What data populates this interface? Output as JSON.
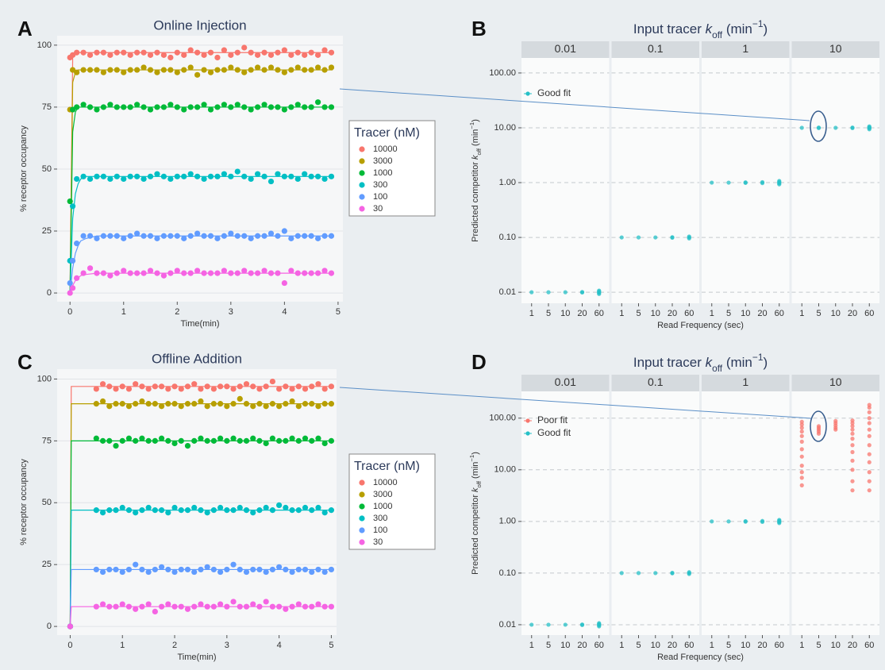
{
  "chart_data": [
    {
      "type": "scatter",
      "panel": "A",
      "title": "Online Injection",
      "xlabel": "Time(min)",
      "ylabel": "% receptor occupancy",
      "xlim": [
        -0.24,
        5.09
      ],
      "ylim": [
        -3.5,
        103.8
      ],
      "xticks": [
        0,
        1,
        2,
        3,
        4,
        5
      ],
      "yticks": [
        0,
        25,
        50,
        75,
        100
      ],
      "grid": true,
      "legend": "right",
      "legend_title": "Tracer (nM)",
      "x": [
        0,
        0.05,
        0.125,
        0.25,
        0.375,
        0.5,
        0.625,
        0.75,
        0.875,
        1,
        1.125,
        1.25,
        1.375,
        1.5,
        1.625,
        1.75,
        1.875,
        2,
        2.125,
        2.25,
        2.375,
        2.5,
        2.625,
        2.75,
        2.875,
        3,
        3.125,
        3.25,
        3.375,
        3.5,
        3.625,
        3.75,
        3.875,
        4,
        4.125,
        4.25,
        4.375,
        4.5,
        4.625,
        4.75,
        4.875
      ],
      "fit_x": [
        0,
        0.05,
        0.1,
        0.15,
        0.2,
        0.3,
        0.5,
        1,
        4.9
      ],
      "series": [
        {
          "name": "10000",
          "color": "#f8766d",
          "values": [
            95,
            96,
            97,
            97,
            96,
            97,
            97,
            96,
            97,
            97,
            96,
            97,
            97,
            96,
            97,
            96,
            95,
            97,
            96,
            98,
            97,
            96,
            97,
            95,
            98,
            96,
            97,
            99,
            97,
            96,
            97,
            96,
            97,
            98,
            96,
            97,
            96,
            97,
            96,
            98,
            97
          ],
          "fit_values": [
            0,
            95,
            97,
            97,
            97,
            97,
            97,
            97,
            97
          ]
        },
        {
          "name": "3000",
          "color": "#b79f00",
          "values": [
            74,
            90,
            89,
            90,
            90,
            90,
            89,
            90,
            90,
            89,
            90,
            90,
            91,
            90,
            89,
            90,
            90,
            89,
            90,
            91,
            88,
            90,
            89,
            90,
            90,
            91,
            90,
            89,
            90,
            91,
            90,
            91,
            90,
            89,
            90,
            91,
            90,
            90,
            91,
            90,
            91
          ],
          "fit_values": [
            0,
            85,
            89,
            90,
            90,
            90,
            90,
            90,
            90
          ]
        },
        {
          "name": "1000",
          "color": "#00ba38",
          "values": [
            37,
            74,
            75,
            76,
            75,
            74,
            75,
            76,
            75,
            75,
            75,
            76,
            75,
            74,
            75,
            75,
            76,
            75,
            74,
            75,
            75,
            76,
            74,
            75,
            76,
            75,
            76,
            75,
            74,
            75,
            76,
            75,
            75,
            74,
            75,
            76,
            75,
            75,
            77,
            75,
            75
          ],
          "fit_values": [
            0,
            65,
            73,
            75,
            75,
            75,
            75,
            75,
            75
          ]
        },
        {
          "name": "300",
          "color": "#00bfc4",
          "values": [
            13,
            35,
            46,
            47,
            46,
            47,
            47,
            46,
            47,
            46,
            47,
            47,
            46,
            47,
            48,
            47,
            46,
            47,
            47,
            48,
            47,
            46,
            47,
            47,
            48,
            47,
            49,
            47,
            46,
            48,
            47,
            45,
            48,
            47,
            47,
            46,
            48,
            47,
            47,
            46,
            47
          ],
          "fit_values": [
            0,
            30,
            40,
            44,
            46,
            47,
            47,
            47,
            47
          ]
        },
        {
          "name": "100",
          "color": "#619cff",
          "values": [
            4,
            13,
            20,
            23,
            23,
            22,
            23,
            23,
            23,
            22,
            23,
            24,
            23,
            23,
            22,
            23,
            23,
            23,
            22,
            23,
            24,
            23,
            23,
            22,
            23,
            24,
            23,
            23,
            22,
            23,
            23,
            24,
            23,
            25,
            22,
            23,
            23,
            23,
            22,
            23,
            23
          ],
          "fit_values": [
            0,
            10,
            16,
            19,
            21,
            22,
            23,
            23,
            23
          ]
        },
        {
          "name": "30",
          "color": "#f564e3",
          "values": [
            0,
            2,
            6,
            8,
            10,
            8,
            8,
            7,
            8,
            9,
            8,
            8,
            8,
            9,
            8,
            7,
            8,
            9,
            8,
            8,
            9,
            8,
            8,
            8,
            9,
            8,
            8,
            9,
            8,
            8,
            9,
            8,
            8,
            4,
            9,
            8,
            8,
            8,
            8,
            9,
            8
          ],
          "fit_values": [
            0,
            3,
            5,
            6,
            7,
            7.5,
            8,
            8,
            8
          ]
        }
      ]
    },
    {
      "type": "strip",
      "panel": "B",
      "title_parts": [
        "Input tracer ",
        "k",
        "off",
        " (min",
        "−1",
        ")"
      ],
      "xlabel": "Read Frequency (sec)",
      "ylabel_parts": [
        "Predicted competitor ",
        "k",
        "off",
        " (min",
        "−1",
        ")"
      ],
      "log_y": true,
      "grid": true,
      "legend": "top-left",
      "ylim": [
        0.0063,
        188
      ],
      "yticks": [
        0.01,
        {
          "value": 0.1,
          "label": "0.10"
        },
        {
          "value": 1,
          "label": "1.00"
        },
        {
          "value": 10,
          "label": "10.00"
        },
        {
          "value": 100,
          "label": "100.00"
        }
      ],
      "facets": [
        "0.01",
        "0.1",
        "1",
        "10"
      ],
      "categories": [
        "1",
        "5",
        "10",
        "20",
        "60"
      ],
      "series": [
        {
          "name": "Good fit",
          "color": "#26c0c7",
          "values": [
            [
              [
                0.01
              ],
              [
                0.01
              ],
              [
                0.01
              ],
              [
                0.0099,
                0.0101
              ],
              [
                0.0093,
                0.0097,
                0.01,
                0.0103,
                0.0107
              ]
            ],
            [
              [
                0.1
              ],
              [
                0.1
              ],
              [
                0.1
              ],
              [
                0.099,
                0.101
              ],
              [
                0.096,
                0.1,
                0.104
              ]
            ],
            [
              [
                1
              ],
              [
                1
              ],
              [
                0.99,
                1.01
              ],
              [
                0.98,
                1.02
              ],
              [
                0.93,
                0.97,
                1,
                1.03,
                1.07
              ]
            ],
            [
              [
                10
              ],
              [
                9.9,
                10.1
              ],
              [
                10
              ],
              [
                9.9,
                10.1
              ],
              [
                9.4,
                9.8,
                10,
                10.2,
                10.6
              ]
            ]
          ]
        }
      ]
    },
    {
      "type": "scatter",
      "panel": "C",
      "title": "Offline Addition",
      "xlabel": "Time(min)",
      "ylabel": "% receptor occupancy",
      "xlim": [
        -0.25,
        5.1
      ],
      "ylim": [
        -3.5,
        104
      ],
      "xticks": [
        0,
        1,
        2,
        3,
        4,
        5
      ],
      "yticks": [
        0,
        25,
        50,
        75,
        100
      ],
      "grid": true,
      "legend": "right",
      "legend_title": "Tracer (nM)",
      "x": [
        0,
        0.5,
        0.625,
        0.75,
        0.875,
        1,
        1.125,
        1.25,
        1.375,
        1.5,
        1.625,
        1.75,
        1.875,
        2,
        2.125,
        2.25,
        2.375,
        2.5,
        2.625,
        2.75,
        2.875,
        3,
        3.125,
        3.25,
        3.375,
        3.5,
        3.625,
        3.75,
        3.875,
        4,
        4.125,
        4.25,
        4.375,
        4.5,
        4.625,
        4.75,
        4.875,
        5
      ],
      "fit_x": [
        0,
        0.02,
        5
      ],
      "series": [
        {
          "name": "10000",
          "color": "#f8766d",
          "values": [
            0,
            96,
            98,
            97,
            96,
            97,
            96,
            98,
            97,
            96,
            97,
            97,
            96,
            97,
            96,
            97,
            98,
            96,
            97,
            96,
            97,
            97,
            96,
            97,
            98,
            97,
            96,
            97,
            99,
            96,
            97,
            96,
            97,
            96,
            97,
            98,
            96,
            97
          ],
          "fit_values": [
            0,
            97,
            97
          ]
        },
        {
          "name": "3000",
          "color": "#b79f00",
          "values": [
            0,
            90,
            91,
            89,
            90,
            90,
            89,
            90,
            91,
            90,
            90,
            89,
            90,
            90,
            89,
            90,
            90,
            91,
            89,
            90,
            90,
            89,
            90,
            92,
            90,
            89,
            90,
            89,
            90,
            89,
            90,
            91,
            89,
            90,
            90,
            89,
            90,
            90
          ],
          "fit_values": [
            0,
            90,
            90
          ]
        },
        {
          "name": "1000",
          "color": "#00ba38",
          "values": [
            0,
            76,
            75,
            75,
            73,
            75,
            76,
            75,
            76,
            75,
            75,
            76,
            75,
            74,
            75,
            73,
            75,
            76,
            75,
            75,
            76,
            75,
            76,
            75,
            75,
            76,
            75,
            74,
            76,
            75,
            75,
            76,
            75,
            76,
            75,
            76,
            74,
            75
          ],
          "fit_values": [
            0,
            75,
            75
          ]
        },
        {
          "name": "300",
          "color": "#00bfc4",
          "values": [
            0,
            47,
            46,
            47,
            47,
            48,
            47,
            46,
            47,
            48,
            47,
            47,
            46,
            48,
            47,
            47,
            48,
            47,
            46,
            47,
            48,
            47,
            47,
            48,
            47,
            46,
            47,
            48,
            47,
            49,
            48,
            47,
            47,
            48,
            47,
            48,
            46,
            47
          ],
          "fit_values": [
            0,
            47,
            47
          ]
        },
        {
          "name": "100",
          "color": "#619cff",
          "values": [
            0,
            23,
            22,
            23,
            23,
            22,
            23,
            25,
            23,
            22,
            23,
            24,
            23,
            22,
            23,
            23,
            22,
            23,
            24,
            23,
            22,
            23,
            25,
            23,
            22,
            23,
            23,
            22,
            23,
            24,
            23,
            22,
            23,
            23,
            22,
            23,
            22,
            23
          ],
          "fit_values": [
            0,
            23,
            23
          ]
        },
        {
          "name": "30",
          "color": "#f564e3",
          "values": [
            0,
            8,
            9,
            8,
            8,
            9,
            8,
            7,
            8,
            9,
            6,
            8,
            9,
            8,
            8,
            7,
            8,
            9,
            8,
            8,
            9,
            8,
            10,
            8,
            8,
            9,
            8,
            10,
            8,
            8,
            7,
            8,
            9,
            8,
            8,
            9,
            8,
            8
          ],
          "fit_values": [
            0,
            8,
            8
          ]
        }
      ]
    },
    {
      "type": "strip",
      "panel": "D",
      "title_parts": [
        "Input tracer ",
        "k",
        "off",
        " (min",
        "−1",
        ")"
      ],
      "xlabel": "Read Frequency (sec)",
      "ylabel_parts": [
        "Predicted competitor ",
        "k",
        "off",
        " (min",
        "−1",
        ")"
      ],
      "log_y": true,
      "grid": true,
      "legend": "top-left",
      "ylim": [
        0.0063,
        330
      ],
      "yticks": [
        0.01,
        {
          "value": 0.1,
          "label": "0.10"
        },
        {
          "value": 1,
          "label": "1.00"
        },
        {
          "value": 10,
          "label": "10.00"
        },
        {
          "value": 100,
          "label": "100.00"
        }
      ],
      "facets": [
        "0.01",
        "0.1",
        "1",
        "10"
      ],
      "categories": [
        "1",
        "5",
        "10",
        "20",
        "60"
      ],
      "series": [
        {
          "name": "Poor fit",
          "color": "#f8766d",
          "values": [
            [
              [],
              [],
              [],
              [],
              []
            ],
            [
              [],
              [],
              [],
              [],
              []
            ],
            [
              [],
              [],
              [],
              [],
              []
            ],
            [
              [
                5,
                7,
                9,
                12,
                18,
                25,
                35,
                45,
                55,
                65,
                75,
                85
              ],
              [
                50,
                55,
                60,
                65,
                70
              ],
              [
                60,
                65,
                72,
                80,
                88
              ],
              [
                4,
                6,
                10,
                15,
                22,
                30,
                40,
                50,
                60,
                70,
                80,
                90
              ],
              [
                4,
                6,
                9,
                14,
                20,
                30,
                45,
                60,
                80,
                100,
                130,
                160,
                180
              ]
            ]
          ]
        },
        {
          "name": "Good fit",
          "color": "#26c0c7",
          "values": [
            [
              [
                0.01
              ],
              [
                0.01
              ],
              [
                0.01
              ],
              [
                0.0099,
                0.0101
              ],
              [
                0.0093,
                0.0097,
                0.01,
                0.0103,
                0.0107
              ]
            ],
            [
              [
                0.1
              ],
              [
                0.1
              ],
              [
                0.1
              ],
              [
                0.099,
                0.101
              ],
              [
                0.096,
                0.1,
                0.104
              ]
            ],
            [
              [
                1
              ],
              [
                1
              ],
              [
                0.99,
                1.01
              ],
              [
                0.98,
                1.02
              ],
              [
                0.93,
                0.97,
                1,
                1.03,
                1.07
              ]
            ],
            [
              [],
              [],
              [],
              [],
              []
            ]
          ]
        }
      ]
    }
  ]
}
